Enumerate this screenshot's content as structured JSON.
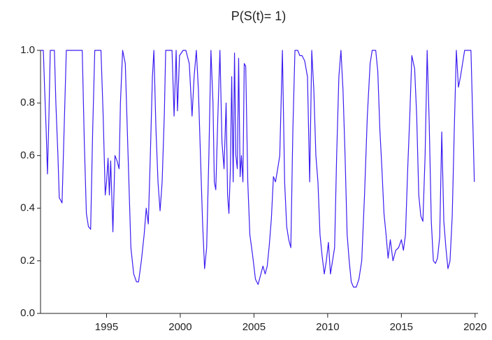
{
  "chart_data": {
    "type": "line",
    "title": "P(S(t)= 1)",
    "color": "#3b1ef0",
    "xlim": [
      1990.52,
      2020.2
    ],
    "ylim": [
      0,
      1
    ],
    "xticks": [
      1995,
      2000,
      2005,
      2010,
      2015,
      2020
    ],
    "yticks": [
      {
        "value": 0,
        "label": "0.0"
      },
      0.2,
      0.4,
      0.6,
      0.8,
      {
        "value": 1,
        "label": "1.0"
      }
    ],
    "x": [
      1990.52,
      1990.71,
      1990.8,
      1990.9,
      1990.99,
      1991.09,
      1991.18,
      1991.46,
      1991.56,
      1991.7,
      1991.79,
      1991.98,
      1992.17,
      1992.27,
      1993.35,
      1993.49,
      1993.63,
      1993.77,
      1993.92,
      1994.06,
      1994.2,
      1994.39,
      1994.62,
      1994.77,
      1994.91,
      1995.0,
      1995.1,
      1995.19,
      1995.28,
      1995.43,
      1995.57,
      1995.71,
      1995.85,
      1995.94,
      1996.09,
      1996.27,
      1996.46,
      1996.65,
      1996.84,
      1997.03,
      1997.17,
      1997.36,
      1997.55,
      1997.69,
      1997.83,
      1997.97,
      1998.11,
      1998.21,
      1998.35,
      1998.49,
      1998.63,
      1998.77,
      1998.92,
      1999.01,
      1999.2,
      1999.44,
      1999.58,
      1999.72,
      1999.81,
      1999.95,
      2000.19,
      2000.38,
      2000.61,
      2000.8,
      2000.94,
      2001.09,
      2001.23,
      2001.37,
      2001.51,
      2001.65,
      2001.79,
      2001.94,
      2002.08,
      2002.22,
      2002.31,
      2002.41,
      2002.55,
      2002.69,
      2002.83,
      2002.97,
      2003.11,
      2003.21,
      2003.3,
      2003.4,
      2003.49,
      2003.59,
      2003.68,
      2003.77,
      2003.87,
      2003.96,
      2004.06,
      2004.15,
      2004.25,
      2004.34,
      2004.44,
      2004.58,
      2004.72,
      2004.91,
      2005.1,
      2005.28,
      2005.47,
      2005.61,
      2005.76,
      2005.9,
      2006.04,
      2006.18,
      2006.32,
      2006.46,
      2006.61,
      2006.75,
      2006.84,
      2006.93,
      2007.08,
      2007.22,
      2007.36,
      2007.5,
      2007.64,
      2007.78,
      2007.97,
      2008.11,
      2008.26,
      2008.44,
      2008.63,
      2008.78,
      2008.92,
      2009.06,
      2009.2,
      2009.34,
      2009.48,
      2009.62,
      2009.77,
      2009.91,
      2010.05,
      2010.19,
      2010.33,
      2010.47,
      2010.61,
      2010.76,
      2010.9,
      2011.04,
      2011.18,
      2011.32,
      2011.46,
      2011.6,
      2011.75,
      2011.94,
      2012.12,
      2012.31,
      2012.5,
      2012.69,
      2012.88,
      2013.02,
      2013.26,
      2013.4,
      2013.54,
      2013.68,
      2013.82,
      2013.96,
      2014.1,
      2014.25,
      2014.43,
      2014.62,
      2014.81,
      2015.0,
      2015.14,
      2015.28,
      2015.43,
      2015.57,
      2015.71,
      2015.9,
      2016.04,
      2016.18,
      2016.32,
      2016.46,
      2016.61,
      2016.75,
      2016.89,
      2017.03,
      2017.17,
      2017.31,
      2017.45,
      2017.6,
      2017.74,
      2017.88,
      2018.02,
      2018.16,
      2018.3,
      2018.45,
      2018.59,
      2018.73,
      2018.87,
      2019.01,
      2019.15,
      2019.29,
      2019.44,
      2019.58,
      2019.72,
      2019.86,
      2019.95
    ],
    "values": [
      1.0,
      1.0,
      0.85,
      0.7,
      0.53,
      0.75,
      1.0,
      1.0,
      0.8,
      0.6,
      0.44,
      0.42,
      0.8,
      1.0,
      1.0,
      0.65,
      0.38,
      0.33,
      0.32,
      0.7,
      1.0,
      1.0,
      1.0,
      0.75,
      0.45,
      0.5,
      0.59,
      0.45,
      0.58,
      0.31,
      0.6,
      0.58,
      0.55,
      0.8,
      1.0,
      0.95,
      0.6,
      0.25,
      0.15,
      0.12,
      0.12,
      0.2,
      0.3,
      0.4,
      0.34,
      0.6,
      0.9,
      1.0,
      0.7,
      0.5,
      0.39,
      0.5,
      0.76,
      1.0,
      1.0,
      1.0,
      0.75,
      1.0,
      0.77,
      0.98,
      1.0,
      1.0,
      0.95,
      0.75,
      0.9,
      1.0,
      0.85,
      0.6,
      0.35,
      0.17,
      0.25,
      0.6,
      1.0,
      0.8,
      0.5,
      0.47,
      0.75,
      1.0,
      0.65,
      0.55,
      0.8,
      0.45,
      0.38,
      0.55,
      0.9,
      0.5,
      0.99,
      0.6,
      0.55,
      0.97,
      0.52,
      0.6,
      0.5,
      0.95,
      0.94,
      0.5,
      0.3,
      0.22,
      0.13,
      0.11,
      0.15,
      0.18,
      0.15,
      0.18,
      0.26,
      0.36,
      0.52,
      0.5,
      0.55,
      0.6,
      0.8,
      1.0,
      0.5,
      0.33,
      0.28,
      0.25,
      0.7,
      1.0,
      1.0,
      0.98,
      0.98,
      0.96,
      0.9,
      0.5,
      1.0,
      0.85,
      0.6,
      0.5,
      0.3,
      0.22,
      0.15,
      0.2,
      0.27,
      0.15,
      0.2,
      0.25,
      0.6,
      0.9,
      1.0,
      0.85,
      0.6,
      0.3,
      0.2,
      0.12,
      0.1,
      0.1,
      0.13,
      0.2,
      0.45,
      0.75,
      0.95,
      1.0,
      1.0,
      0.92,
      0.7,
      0.55,
      0.38,
      0.3,
      0.21,
      0.28,
      0.2,
      0.24,
      0.25,
      0.28,
      0.24,
      0.3,
      0.55,
      0.75,
      0.98,
      0.93,
      0.75,
      0.45,
      0.37,
      0.35,
      0.6,
      1.0,
      0.72,
      0.35,
      0.2,
      0.19,
      0.21,
      0.29,
      0.69,
      0.35,
      0.25,
      0.17,
      0.2,
      0.37,
      0.7,
      1.0,
      0.86,
      0.9,
      0.95,
      1.0,
      1.0,
      1.0,
      1.0,
      0.7,
      0.5
    ]
  }
}
